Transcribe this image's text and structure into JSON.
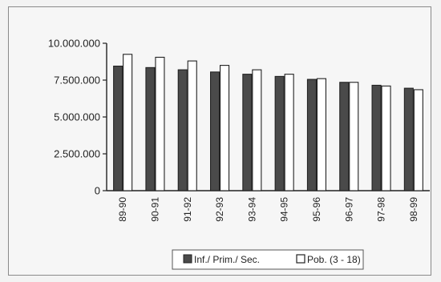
{
  "chart_data": {
    "type": "bar",
    "categories": [
      "89-90",
      "90-91",
      "91-92",
      "92-93",
      "93-94",
      "94-95",
      "95-96",
      "96-97",
      "97-98",
      "98-99"
    ],
    "series": [
      {
        "name": "Inf./ Prim./ Sec.",
        "values": [
          8450000,
          8350000,
          8200000,
          8050000,
          7900000,
          7750000,
          7550000,
          7350000,
          7150000,
          6950000
        ],
        "color": "#4a4a4a"
      },
      {
        "name": "Pob. (3 - 18)",
        "values": [
          9250000,
          9050000,
          8800000,
          8500000,
          8200000,
          7900000,
          7600000,
          7350000,
          7100000,
          6850000
        ],
        "color": "#ffffff"
      }
    ],
    "ylim": [
      0,
      10000000
    ],
    "yticks": [
      "0",
      "2.500.000",
      "5.000.000",
      "7.500.000",
      "10.000.000"
    ],
    "legend_position": "bottom",
    "grid": false
  }
}
